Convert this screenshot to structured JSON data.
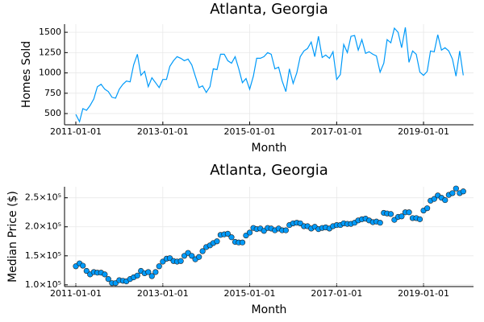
{
  "chart_data": [
    {
      "type": "line",
      "title": "Atlanta, Georgia",
      "xlabel": "Month",
      "ylabel": "Homes Sold",
      "color": "#009af9",
      "grid": true,
      "xlim": [
        "2010-09-28",
        "2020-02-25"
      ],
      "ylim": [
        362,
        1600
      ],
      "xticks": [
        "2011-01-01",
        "2013-01-01",
        "2015-01-01",
        "2017-01-01",
        "2019-01-01"
      ],
      "yticks": [
        500,
        750,
        1000,
        1250,
        1500
      ],
      "x": [
        "2011-01-01",
        "2011-02-01",
        "2011-03-01",
        "2011-04-01",
        "2011-05-01",
        "2011-06-01",
        "2011-07-01",
        "2011-08-01",
        "2011-09-01",
        "2011-10-01",
        "2011-11-01",
        "2011-12-01",
        "2012-01-01",
        "2012-02-01",
        "2012-03-01",
        "2012-04-01",
        "2012-05-01",
        "2012-06-01",
        "2012-07-01",
        "2012-08-01",
        "2012-09-01",
        "2012-10-01",
        "2012-11-01",
        "2012-12-01",
        "2013-01-01",
        "2013-02-01",
        "2013-03-01",
        "2013-04-01",
        "2013-05-01",
        "2013-06-01",
        "2013-07-01",
        "2013-08-01",
        "2013-09-01",
        "2013-10-01",
        "2013-11-01",
        "2013-12-01",
        "2014-01-01",
        "2014-02-01",
        "2014-03-01",
        "2014-04-01",
        "2014-05-01",
        "2014-06-01",
        "2014-07-01",
        "2014-08-01",
        "2014-09-01",
        "2014-10-01",
        "2014-11-01",
        "2014-12-01",
        "2015-01-01",
        "2015-02-01",
        "2015-03-01",
        "2015-04-01",
        "2015-05-01",
        "2015-06-01",
        "2015-07-01",
        "2015-08-01",
        "2015-09-01",
        "2015-10-01",
        "2015-11-01",
        "2015-12-01",
        "2016-01-01",
        "2016-02-01",
        "2016-03-01",
        "2016-04-01",
        "2016-05-01",
        "2016-06-01",
        "2016-07-01",
        "2016-08-01",
        "2016-09-01",
        "2016-10-01",
        "2016-11-01",
        "2016-12-01",
        "2017-01-01",
        "2017-02-01",
        "2017-03-01",
        "2017-04-01",
        "2017-05-01",
        "2017-06-01",
        "2017-07-01",
        "2017-08-01",
        "2017-09-01",
        "2017-10-01",
        "2017-11-01",
        "2017-12-01",
        "2018-01-01",
        "2018-02-01",
        "2018-03-01",
        "2018-04-01",
        "2018-05-01",
        "2018-06-01",
        "2018-07-01",
        "2018-08-01",
        "2018-09-01",
        "2018-10-01",
        "2018-11-01",
        "2018-12-01",
        "2019-01-01",
        "2019-02-01",
        "2019-03-01",
        "2019-04-01",
        "2019-05-01",
        "2019-06-01",
        "2019-07-01",
        "2019-08-01",
        "2019-09-01",
        "2019-10-01",
        "2019-11-01",
        "2019-12-01"
      ],
      "values": [
        490,
        400,
        560,
        540,
        600,
        680,
        830,
        860,
        800,
        770,
        700,
        690,
        800,
        860,
        900,
        890,
        1100,
        1230,
        970,
        1020,
        830,
        940,
        880,
        820,
        920,
        920,
        1080,
        1150,
        1200,
        1180,
        1150,
        1170,
        1100,
        960,
        820,
        840,
        760,
        830,
        1050,
        1040,
        1230,
        1230,
        1150,
        1120,
        1200,
        1050,
        880,
        930,
        800,
        960,
        1180,
        1180,
        1200,
        1250,
        1230,
        1050,
        1070,
        900,
        770,
        1050,
        870,
        1000,
        1200,
        1270,
        1300,
        1380,
        1200,
        1450,
        1190,
        1220,
        1180,
        1260,
        920,
        980,
        1350,
        1250,
        1450,
        1460,
        1280,
        1410,
        1240,
        1260,
        1230,
        1210,
        1010,
        1120,
        1410,
        1370,
        1550,
        1500,
        1310,
        1560,
        1130,
        1270,
        1230,
        1010,
        970,
        1020,
        1270,
        1260,
        1470,
        1280,
        1310,
        1270,
        1170,
        960,
        1270,
        970
      ]
    },
    {
      "type": "scatter",
      "title": "Atlanta, Georgia",
      "xlabel": "Month",
      "ylabel": "Median Price ($)",
      "color": "#009af9",
      "grid": true,
      "xlim": [
        "2010-09-28",
        "2020-02-25"
      ],
      "ylim": [
        97000,
        269000
      ],
      "xticks": [
        "2011-01-01",
        "2013-01-01",
        "2015-01-01",
        "2017-01-01",
        "2019-01-01"
      ],
      "yticks": [
        {
          "value": 100000,
          "label": "1.0×10⁵"
        },
        {
          "value": 150000,
          "label": "1.5×10⁵"
        },
        {
          "value": 200000,
          "label": "2.0×10⁵"
        },
        {
          "value": 250000,
          "label": "2.5×10⁵"
        }
      ],
      "x": [
        "2011-01-01",
        "2011-02-01",
        "2011-03-01",
        "2011-04-01",
        "2011-05-01",
        "2011-06-01",
        "2011-07-01",
        "2011-08-01",
        "2011-09-01",
        "2011-10-01",
        "2011-11-01",
        "2011-12-01",
        "2012-01-01",
        "2012-02-01",
        "2012-03-01",
        "2012-04-01",
        "2012-05-01",
        "2012-06-01",
        "2012-07-01",
        "2012-08-01",
        "2012-09-01",
        "2012-10-01",
        "2012-11-01",
        "2012-12-01",
        "2013-01-01",
        "2013-02-01",
        "2013-03-01",
        "2013-04-01",
        "2013-05-01",
        "2013-06-01",
        "2013-07-01",
        "2013-08-01",
        "2013-09-01",
        "2013-10-01",
        "2013-11-01",
        "2013-12-01",
        "2014-01-01",
        "2014-02-01",
        "2014-03-01",
        "2014-04-01",
        "2014-05-01",
        "2014-06-01",
        "2014-07-01",
        "2014-08-01",
        "2014-09-01",
        "2014-10-01",
        "2014-11-01",
        "2014-12-01",
        "2015-01-01",
        "2015-02-01",
        "2015-03-01",
        "2015-04-01",
        "2015-05-01",
        "2015-06-01",
        "2015-07-01",
        "2015-08-01",
        "2015-09-01",
        "2015-10-01",
        "2015-11-01",
        "2015-12-01",
        "2016-01-01",
        "2016-02-01",
        "2016-03-01",
        "2016-04-01",
        "2016-05-01",
        "2016-06-01",
        "2016-07-01",
        "2016-08-01",
        "2016-09-01",
        "2016-10-01",
        "2016-11-01",
        "2016-12-01",
        "2017-01-01",
        "2017-02-01",
        "2017-03-01",
        "2017-04-01",
        "2017-05-01",
        "2017-06-01",
        "2017-07-01",
        "2017-08-01",
        "2017-09-01",
        "2017-10-01",
        "2017-11-01",
        "2017-12-01",
        "2018-01-01",
        "2018-02-01",
        "2018-03-01",
        "2018-04-01",
        "2018-05-01",
        "2018-06-01",
        "2018-07-01",
        "2018-08-01",
        "2018-09-01",
        "2018-10-01",
        "2018-11-01",
        "2018-12-01",
        "2019-01-01",
        "2019-02-01",
        "2019-03-01",
        "2019-04-01",
        "2019-05-01",
        "2019-06-01",
        "2019-07-01",
        "2019-08-01",
        "2019-09-01",
        "2019-10-01",
        "2019-11-01",
        "2019-12-01"
      ],
      "values": [
        132000,
        137000,
        133000,
        124000,
        118000,
        122000,
        121000,
        121000,
        118000,
        110000,
        103000,
        103000,
        108000,
        107000,
        106000,
        110000,
        113000,
        116000,
        124000,
        120000,
        122000,
        115000,
        122000,
        132000,
        140000,
        145000,
        146000,
        141000,
        140000,
        141000,
        150000,
        155000,
        150000,
        144000,
        148000,
        158000,
        165000,
        168000,
        172000,
        175000,
        186000,
        187000,
        188000,
        182000,
        174000,
        173000,
        173000,
        185000,
        190000,
        198000,
        196000,
        197000,
        193000,
        198000,
        197000,
        194000,
        197000,
        194000,
        194000,
        203000,
        206000,
        207000,
        206000,
        201000,
        201000,
        197000,
        200000,
        196000,
        198000,
        199000,
        197000,
        201000,
        203000,
        203000,
        206000,
        205000,
        205000,
        207000,
        211000,
        213000,
        214000,
        211000,
        208000,
        209000,
        207000,
        224000,
        223000,
        222000,
        212000,
        217000,
        218000,
        225000,
        225000,
        215000,
        215000,
        213000,
        228000,
        232000,
        245000,
        248000,
        254000,
        250000,
        246000,
        255000,
        258000,
        266000,
        258000,
        261000
      ]
    }
  ]
}
